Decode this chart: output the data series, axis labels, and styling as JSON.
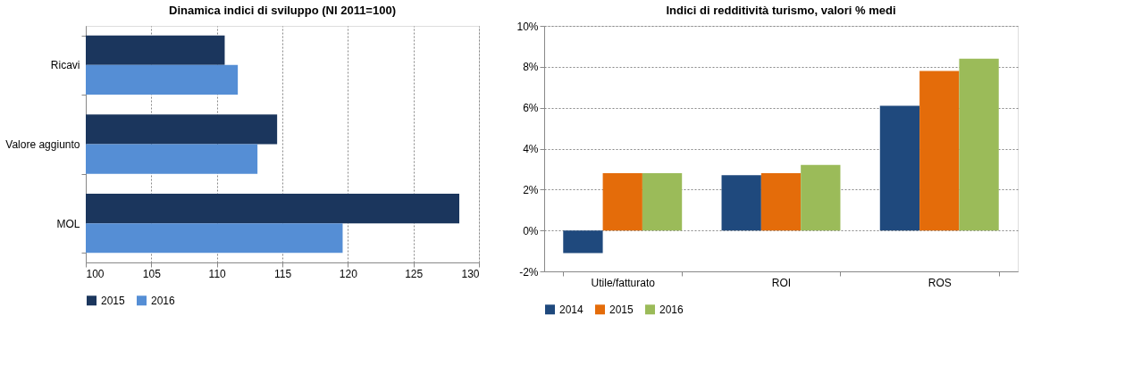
{
  "chart_data": [
    {
      "type": "bar",
      "orientation": "horizontal",
      "title": "Dinamica indici di sviluppo (NI 2011=100)",
      "categories": [
        "Ricavi",
        "Valore aggiunto",
        "MOL"
      ],
      "series": [
        {
          "name": "2015",
          "color": "#1b365d",
          "values": [
            110.6,
            114.6,
            128.5
          ]
        },
        {
          "name": "2016",
          "color": "#558ed5",
          "values": [
            111.6,
            113.1,
            119.6
          ]
        }
      ],
      "xlim": [
        100,
        130
      ],
      "xticks": [
        100,
        105,
        110,
        115,
        120,
        125,
        130
      ],
      "grid": "x",
      "legend": "bottom"
    },
    {
      "type": "bar",
      "title": "Indici di redditività turismo, valori % medi",
      "categories": [
        "Utile/fatturato",
        "ROI",
        "ROS"
      ],
      "series": [
        {
          "name": "2014",
          "color": "#1f497d",
          "values": [
            -1.1,
            2.7,
            6.1
          ]
        },
        {
          "name": "2015",
          "color": "#e46c0a",
          "values": [
            2.8,
            2.8,
            7.8
          ]
        },
        {
          "name": "2016",
          "color": "#9bbb59",
          "values": [
            2.8,
            3.2,
            8.4
          ]
        }
      ],
      "ylim": [
        -2,
        10
      ],
      "yticks": [
        {
          "value": -2,
          "label": "-2%"
        },
        {
          "value": 0,
          "label": "0%"
        },
        {
          "value": 2,
          "label": "2%"
        },
        {
          "value": 4,
          "label": "4%"
        },
        {
          "value": 6,
          "label": "6%"
        },
        {
          "value": 8,
          "label": "8%"
        },
        {
          "value": 10,
          "label": "10%"
        }
      ],
      "grid": "y",
      "legend": "bottom"
    }
  ]
}
